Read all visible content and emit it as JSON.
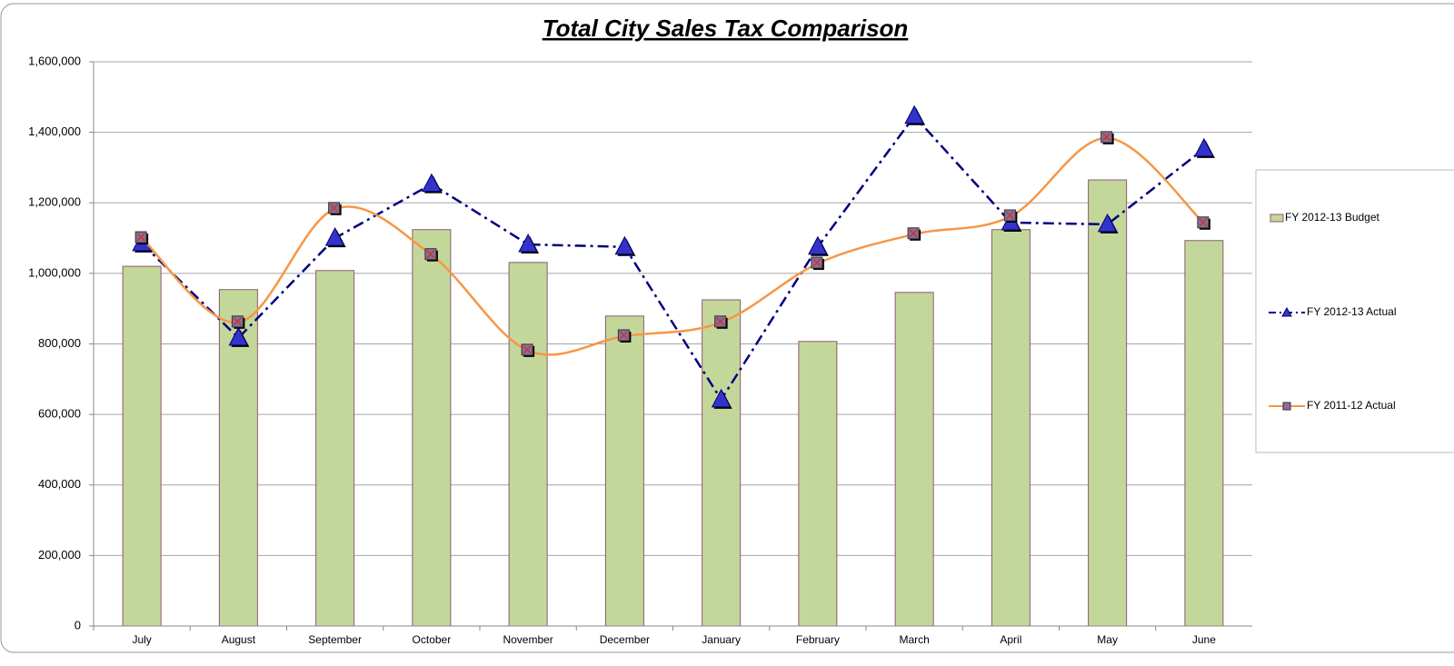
{
  "chart_data": {
    "type": "combo",
    "title": "Total City Sales Tax Comparison",
    "categories": [
      "July",
      "August",
      "September",
      "October",
      "November",
      "December",
      "January",
      "February",
      "March",
      "April",
      "May",
      "June"
    ],
    "series": [
      {
        "name": "FY 2012-13 Budget",
        "type": "bar",
        "color": "#c4d79b",
        "values": [
          1020000,
          954000,
          1008000,
          1124000,
          1031000,
          879000,
          925000,
          807000,
          946000,
          1124000,
          1265000,
          1093000
        ]
      },
      {
        "name": "FY 2012-13 Actual",
        "type": "line",
        "color": "#000080",
        "values": [
          1085000,
          817000,
          1100000,
          1253000,
          1082000,
          1075000,
          642000,
          1075000,
          1446000,
          1144000,
          1139000,
          1353000
        ]
      },
      {
        "name": "FY 2011-12 Actual",
        "type": "smooth-line",
        "color": "#f79646",
        "values": [
          1100000,
          861000,
          1183000,
          1052000,
          781000,
          822000,
          861000,
          1028000,
          1111000,
          1162000,
          1384000,
          1142000
        ]
      }
    ],
    "ylim": [
      0,
      1600000
    ],
    "yticks": [
      0,
      {
        "value": 200000,
        "label": "200,000"
      },
      {
        "value": 400000,
        "label": "400,000"
      },
      {
        "value": 600000,
        "label": "600,000"
      },
      {
        "value": 800000,
        "label": "800,000"
      },
      {
        "value": 1000000,
        "label": "1,000,000"
      },
      {
        "value": 1200000,
        "label": "1,200,000"
      },
      {
        "value": 1400000,
        "label": "1,400,000"
      },
      {
        "value": 1600000,
        "label": "1,600,000"
      }
    ],
    "grid": true,
    "legend": "right"
  }
}
